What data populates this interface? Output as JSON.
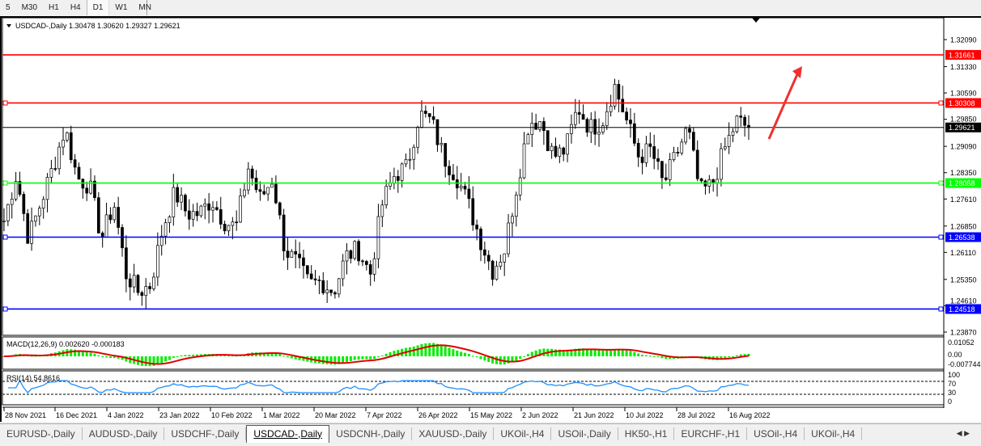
{
  "timeframes": [
    "5",
    "M30",
    "H1",
    "H4",
    "D1",
    "W1",
    "MN"
  ],
  "active_timeframe": "D1",
  "chart": {
    "title": "USDCAD-,Daily",
    "ohlc": "1.30478 1.30620 1.29327 1.29621"
  },
  "price_axis": [
    "1.32090",
    "1.31330",
    "1.30590",
    "1.29850",
    "1.29090",
    "1.28350",
    "1.27610",
    "1.26850",
    "1.26110",
    "1.25350",
    "1.24610",
    "1.23870"
  ],
  "levels": [
    {
      "price": "1.31661",
      "color": "#ff0000"
    },
    {
      "price": "1.30308",
      "color": "#ff0000"
    },
    {
      "price": "1.29621",
      "color": "#000000"
    },
    {
      "price": "1.28058",
      "color": "#00ff00"
    },
    {
      "price": "1.26538",
      "color": "#0000ff"
    },
    {
      "price": "1.24518",
      "color": "#0000ff"
    }
  ],
  "macd": {
    "label": "MACD(12,26,9) 0.002620 -0.000183",
    "axis": [
      "0.01052",
      "0.00",
      "-0.007744"
    ]
  },
  "rsi": {
    "label": "RSI(14) 54.8616",
    "axis": [
      "100",
      "70",
      "30",
      "0"
    ]
  },
  "dates": [
    "28 Nov 2021",
    "16 Dec 2021",
    "4 Jan 2022",
    "23 Jan 2022",
    "10 Feb 2022",
    "1 Mar 2022",
    "20 Mar 2022",
    "7 Apr 2022",
    "26 Apr 2022",
    "15 May 2022",
    "2 Jun 2022",
    "21 Jun 2022",
    "10 Jul 2022",
    "28 Jul 2022",
    "16 Aug 2022"
  ],
  "chart_data": {
    "type": "candlestick",
    "approx_closes": [
      1.27,
      1.283,
      1.265,
      1.275,
      1.285,
      1.296,
      1.282,
      1.28,
      1.265,
      1.275,
      1.255,
      1.25,
      1.252,
      1.268,
      1.278,
      1.272,
      1.272,
      1.276,
      1.27,
      1.268,
      1.285,
      1.276,
      1.282,
      1.262,
      1.258,
      1.252,
      1.253,
      1.25,
      1.26,
      1.262,
      1.255,
      1.275,
      1.283,
      1.285,
      1.3,
      1.298,
      1.288,
      1.283,
      1.275,
      1.265,
      1.256,
      1.262,
      1.28,
      1.298,
      1.298,
      1.288,
      1.29,
      1.302,
      1.296,
      1.298,
      1.308,
      1.298,
      1.288,
      1.29,
      1.28,
      1.288,
      1.296,
      1.278,
      1.28,
      1.29,
      1.298,
      1.2962
    ]
  },
  "tabs": [
    "EURUSD-,Daily",
    "AUDUSD-,Daily",
    "USDCHF-,Daily",
    "USDCAD-,Daily",
    "USDCNH-,Daily",
    "XAUUSD-,Daily",
    "UKOil-,H4",
    "USOil-,Daily",
    "HK50-,H1",
    "EURCHF-,H1",
    "USOil-,H4",
    "UKOil-,H4"
  ],
  "active_tab": "USDCAD-,Daily"
}
